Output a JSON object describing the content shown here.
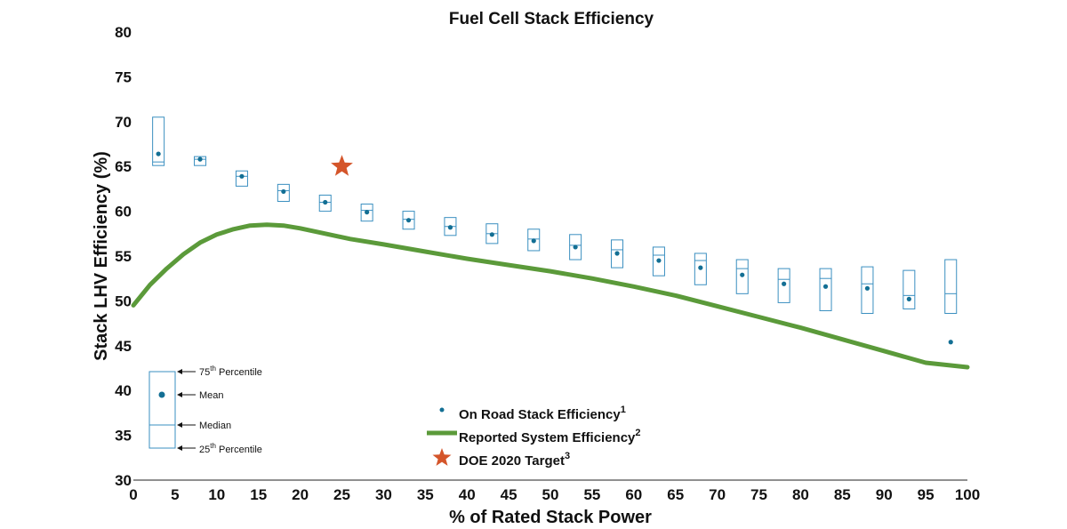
{
  "chart_data": {
    "type": "box",
    "title": "Fuel Cell Stack Efficiency",
    "xlabel": "% of Rated Stack Power",
    "ylabel": "Stack LHV Efficiency (%)",
    "xlim": [
      0,
      100
    ],
    "ylim": [
      30,
      80
    ],
    "xticks": [
      0,
      5,
      10,
      15,
      20,
      25,
      30,
      35,
      40,
      45,
      50,
      55,
      60,
      65,
      70,
      75,
      80,
      85,
      90,
      95,
      100
    ],
    "yticks": [
      30,
      35,
      40,
      45,
      50,
      55,
      60,
      65,
      70,
      75,
      80
    ],
    "colors": {
      "box": "#3a8fc0",
      "mean": "#136f94",
      "line": "#5b9a3a",
      "star": "#d4552a"
    },
    "boxes": [
      {
        "x": 3.0,
        "q1": 65.1,
        "median": 65.5,
        "q3": 70.5,
        "mean": 66.4
      },
      {
        "x": 8.0,
        "q1": 65.1,
        "median": 65.8,
        "q3": 66.1,
        "mean": 65.8
      },
      {
        "x": 13.0,
        "q1": 62.8,
        "median": 63.9,
        "q3": 64.5,
        "mean": 63.9
      },
      {
        "x": 18.0,
        "q1": 61.1,
        "median": 62.3,
        "q3": 63.0,
        "mean": 62.2
      },
      {
        "x": 23.0,
        "q1": 60.0,
        "median": 61.0,
        "q3": 61.8,
        "mean": 61.0
      },
      {
        "x": 28.0,
        "q1": 58.9,
        "median": 60.1,
        "q3": 60.8,
        "mean": 59.9
      },
      {
        "x": 33.0,
        "q1": 58.0,
        "median": 59.1,
        "q3": 60.0,
        "mean": 59.0
      },
      {
        "x": 38.0,
        "q1": 57.3,
        "median": 58.3,
        "q3": 59.3,
        "mean": 58.2
      },
      {
        "x": 43.0,
        "q1": 56.4,
        "median": 57.5,
        "q3": 58.6,
        "mean": 57.4
      },
      {
        "x": 48.0,
        "q1": 55.6,
        "median": 56.9,
        "q3": 58.0,
        "mean": 56.7
      },
      {
        "x": 53.0,
        "q1": 54.6,
        "median": 56.2,
        "q3": 57.4,
        "mean": 56.0
      },
      {
        "x": 58.0,
        "q1": 53.7,
        "median": 55.7,
        "q3": 56.8,
        "mean": 55.3
      },
      {
        "x": 63.0,
        "q1": 52.8,
        "median": 55.1,
        "q3": 56.0,
        "mean": 54.5
      },
      {
        "x": 68.0,
        "q1": 51.8,
        "median": 54.5,
        "q3": 55.3,
        "mean": 53.7
      },
      {
        "x": 73.0,
        "q1": 50.8,
        "median": 53.6,
        "q3": 54.6,
        "mean": 52.9
      },
      {
        "x": 78.0,
        "q1": 49.8,
        "median": 52.4,
        "q3": 53.6,
        "mean": 51.9
      },
      {
        "x": 83.0,
        "q1": 48.9,
        "median": 52.5,
        "q3": 53.6,
        "mean": 51.6
      },
      {
        "x": 88.0,
        "q1": 48.6,
        "median": 51.9,
        "q3": 53.8,
        "mean": 51.4
      },
      {
        "x": 93.0,
        "q1": 49.1,
        "median": 50.6,
        "q3": 53.4,
        "mean": 50.2
      },
      {
        "x": 98.0,
        "q1": 48.6,
        "median": 50.8,
        "q3": 54.6,
        "mean": 45.4
      }
    ],
    "series": [
      {
        "name": "Reported System Efficiency",
        "type": "line",
        "x": [
          0,
          2,
          4,
          6,
          8,
          10,
          12,
          14,
          16,
          18,
          20,
          22,
          24,
          26,
          30,
          35,
          40,
          45,
          50,
          55,
          60,
          65,
          70,
          75,
          80,
          85,
          90,
          95,
          100
        ],
        "y": [
          49.5,
          51.8,
          53.6,
          55.2,
          56.5,
          57.4,
          58.0,
          58.4,
          58.5,
          58.4,
          58.1,
          57.7,
          57.3,
          56.9,
          56.3,
          55.5,
          54.7,
          54.0,
          53.3,
          52.5,
          51.6,
          50.6,
          49.4,
          48.2,
          47.0,
          45.7,
          44.4,
          43.1,
          42.6
        ]
      },
      {
        "name": "DOE 2020 Target",
        "type": "scatter",
        "x": [
          25
        ],
        "y": [
          65
        ]
      }
    ],
    "legend": [
      {
        "label": "On Road Stack Efficiency",
        "sup": "1"
      },
      {
        "label": "Reported System Efficiency",
        "sup": "2"
      },
      {
        "label": "DOE 2020 Target",
        "sup": "3"
      }
    ],
    "box_key": {
      "p75": "75",
      "p75_sup": "th",
      "p75_suffix": " Percentile",
      "mean": "Mean",
      "median": "Median",
      "p25": "25",
      "p25_sup": "th",
      "p25_suffix": " Percentile"
    },
    "legend_placement": "bottom-center"
  }
}
